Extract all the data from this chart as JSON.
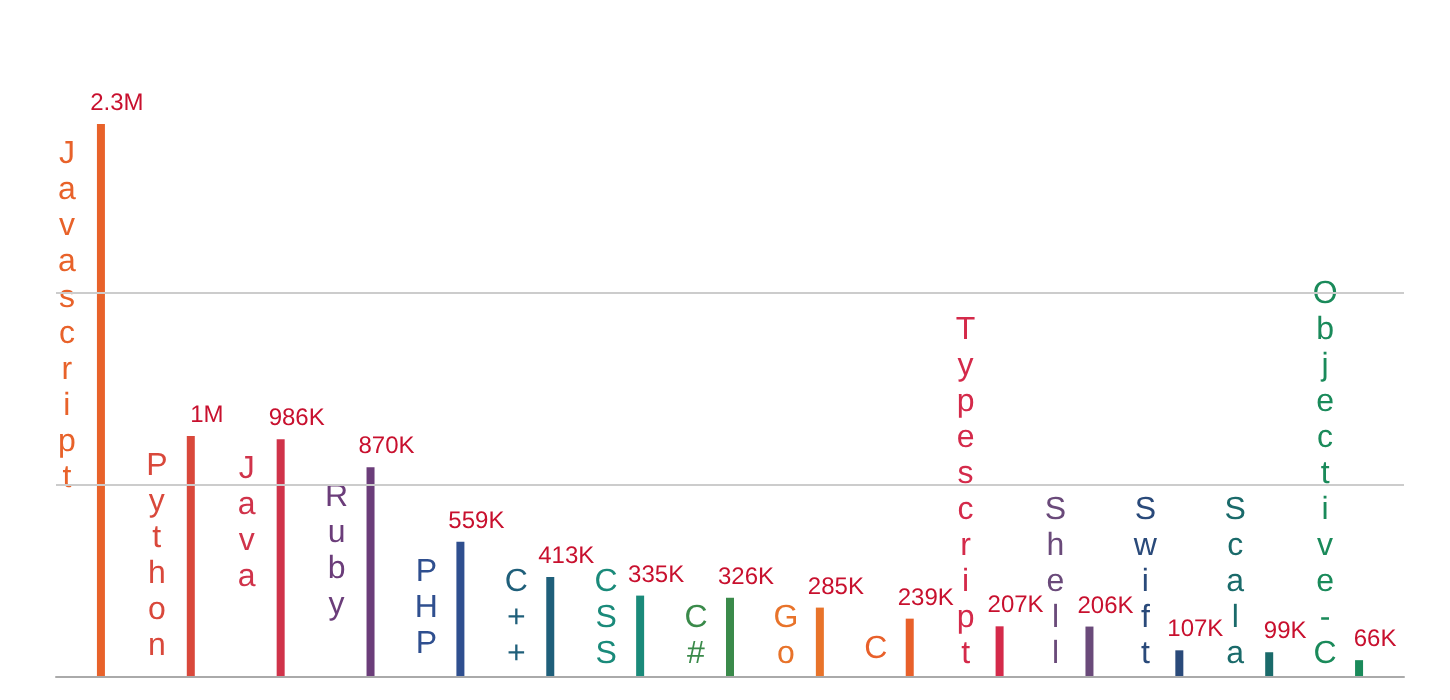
{
  "chart_data": {
    "type": "bar",
    "categories": [
      "Javascript",
      "Python",
      "Java",
      "Ruby",
      "PHP",
      "C++",
      "CSS",
      "C#",
      "Go",
      "C",
      "Typescript",
      "Shell",
      "Swift",
      "Scala",
      "Objective-C"
    ],
    "values": [
      2300000,
      1000000,
      986000,
      870000,
      559000,
      413000,
      335000,
      326000,
      285000,
      239000,
      207000,
      206000,
      107000,
      99000,
      66000
    ],
    "value_labels": [
      "2.3M",
      "1M",
      "986K",
      "870K",
      "559K",
      "413K",
      "335K",
      "326K",
      "285K",
      "239K",
      "207K",
      "206K",
      "107K",
      "99K",
      "66K"
    ],
    "colors": [
      "#e8622a",
      "#d9483b",
      "#d0334a",
      "#6b3d7a",
      "#2f4f8f",
      "#1f5f7a",
      "#1a8a7a",
      "#3a8a4a",
      "#e8732a",
      "#e8602a",
      "#d42a4a",
      "#6a4a7a",
      "#2a4a7a",
      "#1a6a6a",
      "#1a8a5a"
    ],
    "ref_lines": [
      {
        "axis": "y",
        "value": 800000,
        "color": "#cccccc"
      },
      {
        "axis": "y",
        "value": 1600000,
        "color": "#cccccc"
      }
    ],
    "tick_labels": false
  }
}
